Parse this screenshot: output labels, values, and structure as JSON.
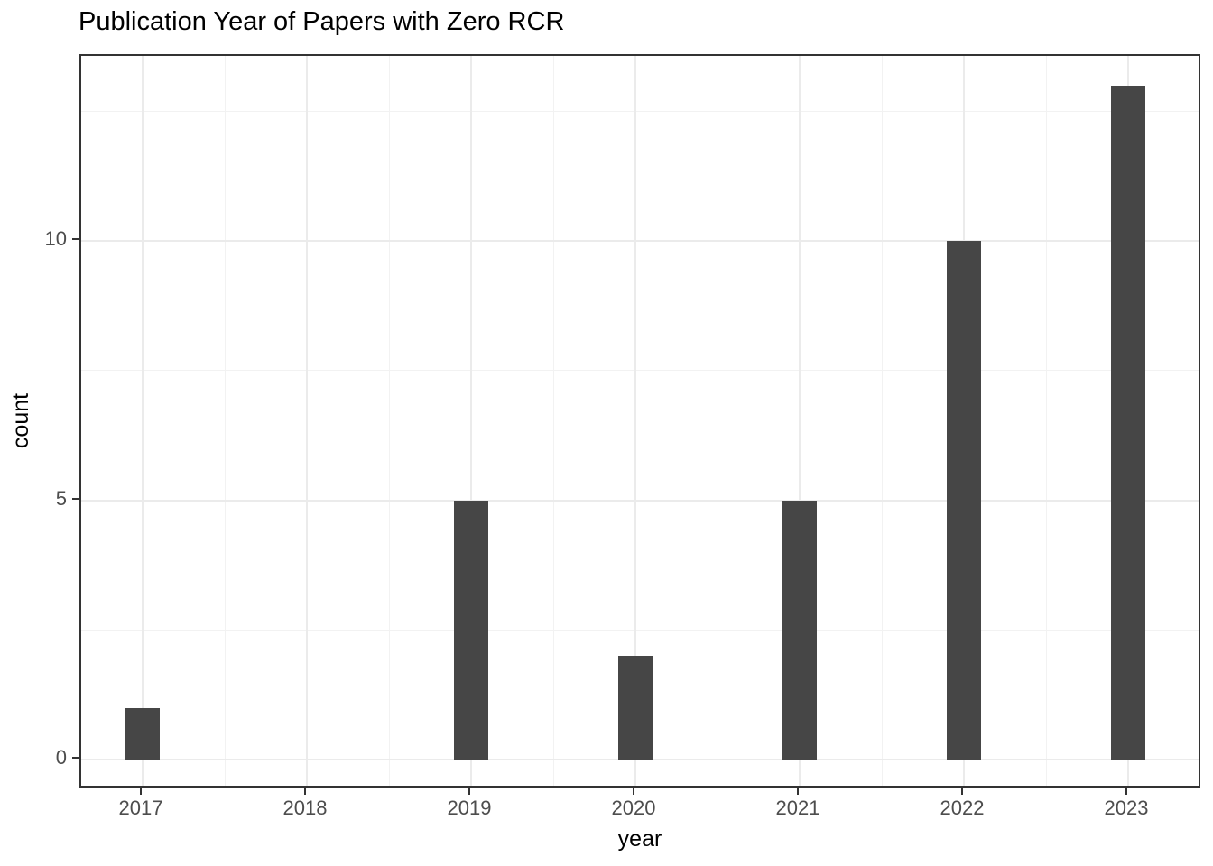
{
  "chart_data": {
    "type": "bar",
    "title": "Publication Year of Papers with Zero RCR",
    "xlabel": "year",
    "ylabel": "count",
    "categories": [
      "2017",
      "2018",
      "2019",
      "2020",
      "2021",
      "2022",
      "2023"
    ],
    "values": [
      1,
      0,
      5,
      2,
      5,
      10,
      13
    ],
    "y_ticks": [
      0,
      5,
      10
    ],
    "y_minor_ticks": [
      2.5,
      7.5,
      12.5
    ],
    "ylim": [
      -0.65,
      13.65
    ],
    "grid": "major and minor, both axes",
    "legend": "none",
    "style": "ggplot2 theme_bw",
    "colors": {
      "bar_fill": "#464646",
      "grid_major": "#ebebeb",
      "grid_minor": "#f2f2f2",
      "panel_border": "#333333",
      "axis_tick": "#333333",
      "axis_text": "#4d4d4d",
      "title_text": "#000000",
      "background": "#ffffff"
    }
  }
}
